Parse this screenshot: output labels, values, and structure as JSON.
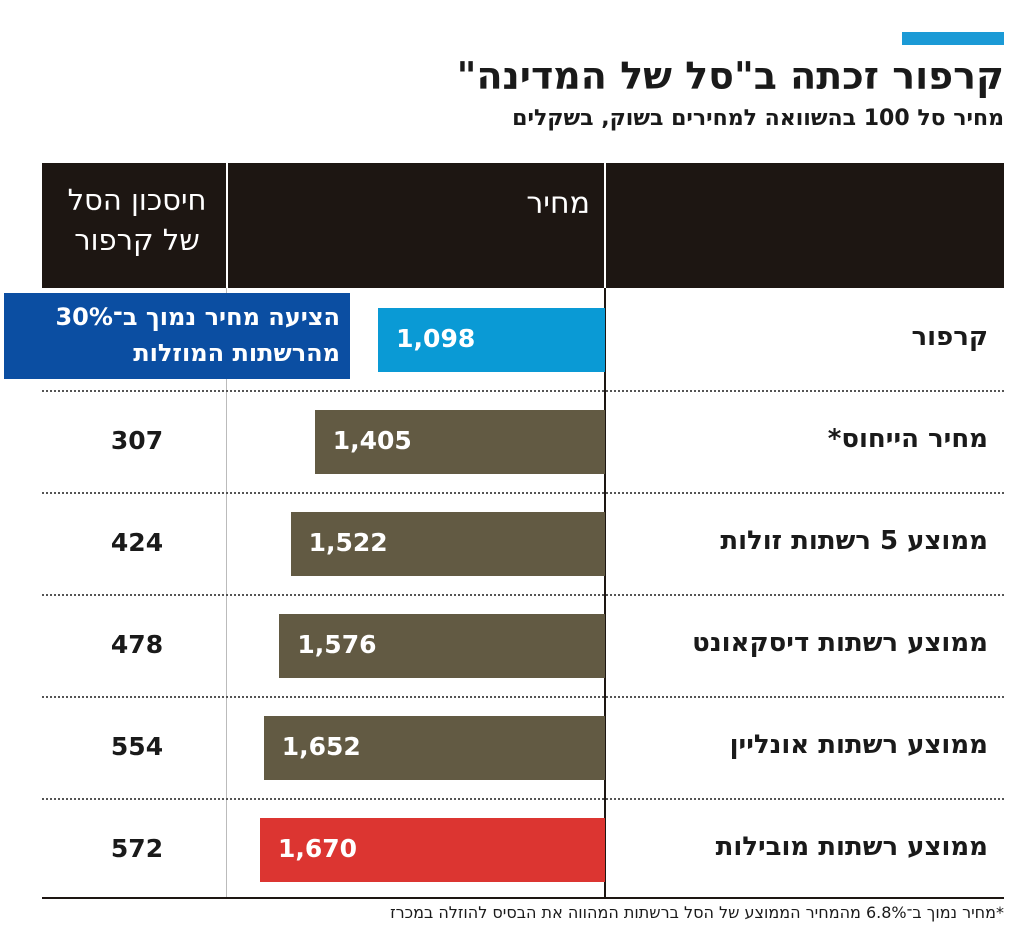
{
  "chart_data": {
    "type": "bar",
    "title": "קרפור זכתה ב\"סל של המדינה\"",
    "subtitle": "מחיר סל 100 בהשוואה למחירים בשוק, בשקלים",
    "column_headers": [
      "מחיר",
      "חיסכון הסל של קרפור"
    ],
    "categories": [
      "קרפור",
      "מחיר הייחוס*",
      "ממוצע 5 רשתות זולות",
      "ממוצע רשתות דיסקאונט",
      "ממוצע רשתות אונליין",
      "ממוצע רשתות מובילות"
    ],
    "values": [
      1098,
      1405,
      1522,
      1576,
      1652,
      1670
    ],
    "value_labels": [
      "1,098",
      "1,405",
      "1,522",
      "1,576",
      "1,652",
      "1,670"
    ],
    "colors": [
      "#0a9ad5",
      "#625a43",
      "#625a43",
      "#625a43",
      "#625a43",
      "#dc3531"
    ],
    "savings": [
      null,
      307,
      424,
      478,
      554,
      572
    ],
    "annotation": "הציעה מחיר נמוך ב־30% מהרשתות המוזלות",
    "footnote": "*מחיר נמוך ב־6.8% מהמחיר הממוצע של הסל ברשתות המהווה את הבסיס להוזלה במכרז"
  }
}
